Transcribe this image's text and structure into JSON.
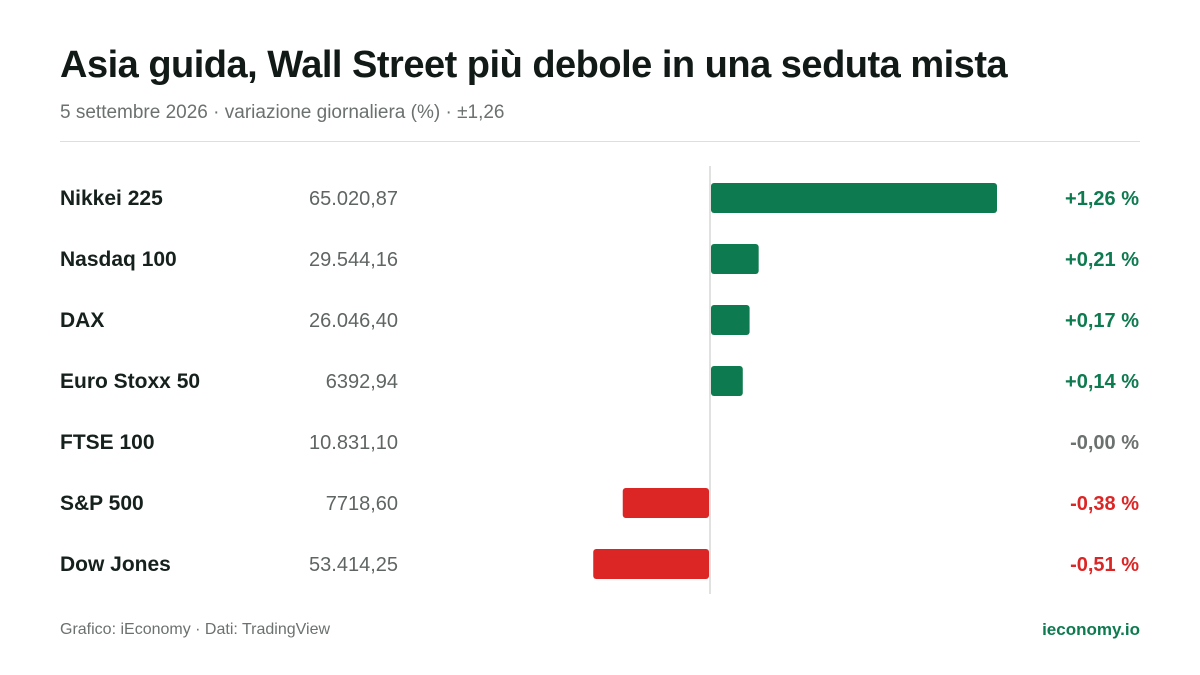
{
  "header": {
    "title": "Asia guida, Wall Street più debole in una seduta mista",
    "subtitle": "5 settembre 2026 · variazione giornaliera (%) · ±1,26"
  },
  "footer": {
    "source": "Grafico: iEconomy · Dati: TradingView",
    "brand": "ieconomy.io"
  },
  "colors": {
    "positive": "#0e7a4f",
    "negative": "#dc2626",
    "neutral": "#6b716e",
    "axis": "#d5d8d6"
  },
  "chart_data": {
    "type": "bar",
    "orientation": "horizontal",
    "categories": [
      "Nikkei 225",
      "Nasdaq 100",
      "DAX",
      "Euro Stoxx 50",
      "FTSE 100",
      "S&P 500",
      "Dow Jones"
    ],
    "index_levels": [
      "65.020,87",
      "29.544,16",
      "26.046,40",
      "6392,94",
      "10.831,10",
      "7718,60",
      "53.414,25"
    ],
    "values": [
      1.26,
      0.21,
      0.17,
      0.14,
      -0.0,
      -0.38,
      -0.51
    ],
    "value_labels": [
      "+1,26 %",
      "+0,21 %",
      "+0,17 %",
      "+0,14 %",
      "-0,00 %",
      "-0,38 %",
      "-0,51 %"
    ],
    "xlim": [
      -1.26,
      1.26
    ],
    "grid": false
  }
}
